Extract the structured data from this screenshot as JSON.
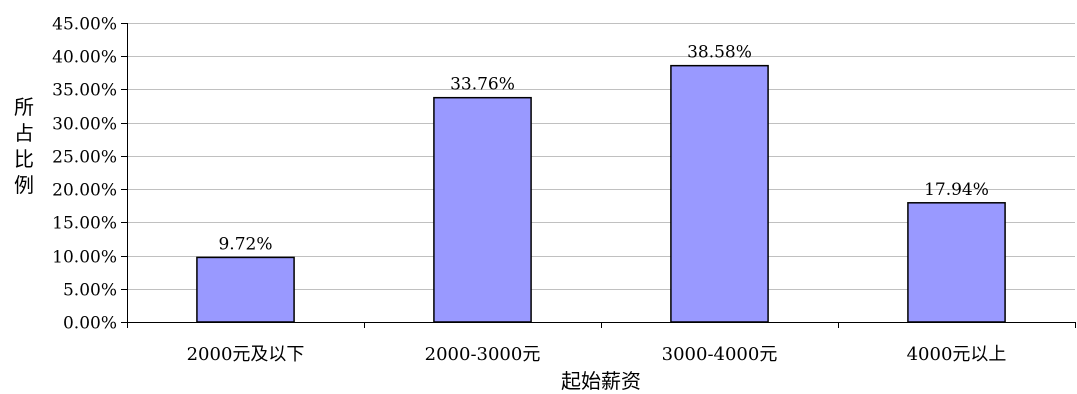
{
  "chart_data": {
    "type": "bar",
    "title": "",
    "xlabel": "起始薪资",
    "ylabel": "所占比例",
    "categories": [
      "2000元及以下",
      "2000-3000元",
      "3000-4000元",
      "4000元以上"
    ],
    "values": [
      9.72,
      33.76,
      38.58,
      17.94
    ],
    "data_labels": [
      "9.72%",
      "33.76%",
      "38.58%",
      "17.94%"
    ],
    "y_ticks": [
      0,
      5,
      10,
      15,
      20,
      25,
      30,
      35,
      40,
      45
    ],
    "y_tick_labels": [
      "0.00%",
      "5.00%",
      "10.00%",
      "15.00%",
      "20.00%",
      "25.00%",
      "30.00%",
      "35.00%",
      "40.00%",
      "45.00%"
    ],
    "ylim": [
      0,
      45
    ],
    "grid": true,
    "legend": "none",
    "bar_color": "#9999ff",
    "bar_edge_color": "#000000",
    "grid_color": "#c0c0c0"
  }
}
